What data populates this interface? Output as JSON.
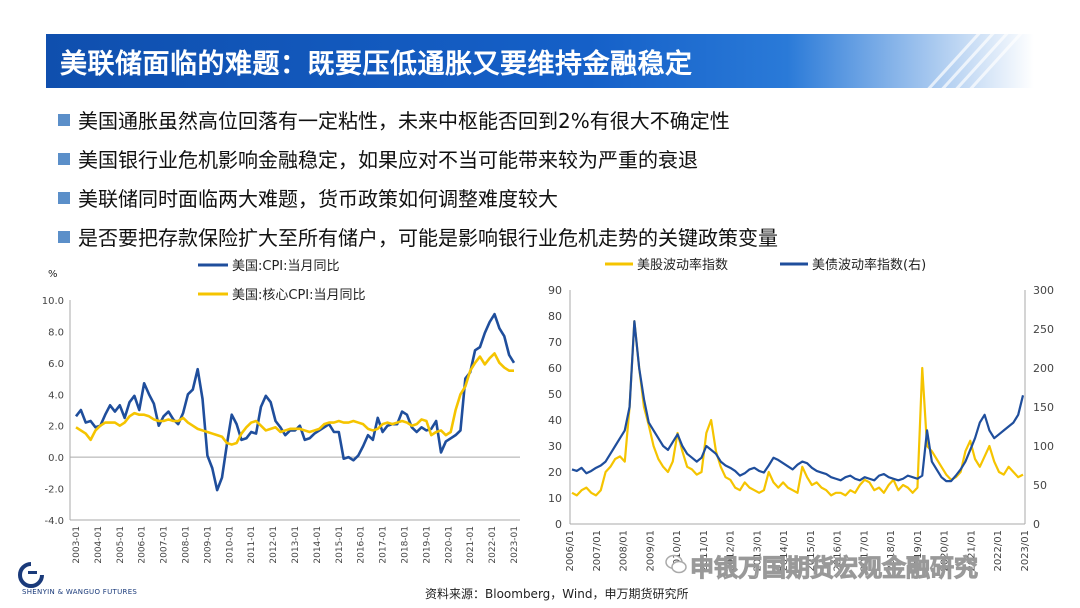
{
  "title": "美联储面临的难题：既要压低通胀又要维持金融稳定",
  "bullets": [
    "美国通胀虽然高位回落有一定粘性，未来中枢能否回到2%有很大不确定性",
    "美国银行业危机影响金融稳定，如果应对不当可能带来较为严重的衰退",
    "美联储同时面临两大难题，货币政策如何调整难度较大",
    "是否要把存款保险扩大至所有储户，可能是影响银行业危机走势的关键政策变量"
  ],
  "colors": {
    "title_bg": "#1560c8",
    "navy": "#1f4e9c",
    "gold": "#f5c400",
    "bullet": "#5b8fc9"
  },
  "chart_data": [
    {
      "type": "line",
      "unit_label": "%",
      "ylim": [
        -4.0,
        10.0
      ],
      "yticks": [
        "10.0",
        "8.0",
        "6.0",
        "4.0",
        "2.0",
        "0.0",
        "-2.0",
        "-4.0"
      ],
      "xticks": [
        "2003-01",
        "2004-01",
        "2005-01",
        "2006-01",
        "2007-01",
        "2008-01",
        "2009-01",
        "2010-01",
        "2011-01",
        "2012-01",
        "2013-01",
        "2014-01",
        "2015-01",
        "2016-01",
        "2017-01",
        "2018-01",
        "2019-01",
        "2020-01",
        "2021-01",
        "2022-01",
        "2023-01"
      ],
      "series": [
        {
          "name": "美国:CPI:当月同比",
          "color": "#1f4e9c",
          "values": [
            2.6,
            3.0,
            2.2,
            2.3,
            1.9,
            2.0,
            2.7,
            3.3,
            2.9,
            3.3,
            2.5,
            3.5,
            3.9,
            3.0,
            4.7,
            4.0,
            3.4,
            2.0,
            2.6,
            2.9,
            2.4,
            2.1,
            2.8,
            4.0,
            4.3,
            5.6,
            3.7,
            0.1,
            -0.7,
            -2.1,
            -1.3,
            0.8,
            2.7,
            2.1,
            1.1,
            1.2,
            1.6,
            1.5,
            3.2,
            3.9,
            3.5,
            2.3,
            1.9,
            1.4,
            1.7,
            1.7,
            2.0,
            1.1,
            1.2,
            1.5,
            1.7,
            1.9,
            2.1,
            1.6,
            1.6,
            -0.1,
            0.0,
            -0.2,
            0.1,
            0.7,
            1.4,
            1.1,
            2.5,
            1.6,
            2.0,
            2.1,
            2.1,
            2.9,
            2.7,
            1.9,
            1.6,
            1.9,
            1.7,
            1.8,
            2.3,
            0.3,
            1.0,
            1.2,
            1.4,
            1.7,
            5.0,
            5.4,
            6.8,
            7.0,
            7.9,
            8.6,
            9.1,
            8.2,
            7.7,
            6.5,
            6.0
          ]
        },
        {
          "name": "美国:核心CPI:当月同比",
          "color": "#f5c400",
          "values": [
            1.9,
            1.7,
            1.5,
            1.1,
            1.7,
            2.0,
            2.2,
            2.2,
            2.2,
            2.0,
            2.2,
            2.6,
            2.8,
            2.7,
            2.7,
            2.6,
            2.4,
            2.3,
            2.3,
            2.4,
            2.3,
            2.3,
            2.5,
            2.2,
            2.0,
            1.8,
            1.7,
            1.6,
            1.5,
            1.4,
            1.3,
            0.9,
            0.8,
            0.9,
            1.5,
            1.9,
            2.2,
            2.3,
            2.0,
            1.7,
            1.8,
            1.9,
            1.6,
            1.7,
            1.8,
            1.8,
            1.8,
            1.7,
            1.6,
            1.7,
            1.8,
            2.1,
            2.2,
            2.2,
            2.3,
            2.2,
            2.2,
            2.3,
            2.2,
            2.1,
            1.8,
            1.7,
            1.8,
            2.1,
            2.2,
            2.1,
            2.2,
            2.3,
            2.2,
            2.0,
            2.1,
            2.4,
            2.3,
            1.4,
            1.6,
            1.7,
            1.4,
            1.6,
            3.0,
            4.0,
            4.5,
            5.5,
            6.0,
            6.4,
            5.9,
            6.3,
            6.6,
            6.0,
            5.7,
            5.5,
            5.5
          ]
        }
      ]
    },
    {
      "type": "line",
      "ylim": [
        0,
        90
      ],
      "y2lim": [
        0,
        300
      ],
      "yticks": [
        "90",
        "80",
        "70",
        "60",
        "50",
        "40",
        "30",
        "20",
        "10",
        "0"
      ],
      "y2ticks": [
        "300",
        "250",
        "200",
        "150",
        "100",
        "50",
        "0"
      ],
      "xticks": [
        "2006/01",
        "2007/01",
        "2008/01",
        "2009/01",
        "2010/01",
        "2011/01",
        "2012/01",
        "2013/01",
        "2014/01",
        "2015/01",
        "2016/01",
        "2017/01",
        "2018/01",
        "2019/01",
        "2020/01",
        "2021/01",
        "2022/01",
        "2023/01"
      ],
      "series": [
        {
          "name": "美股波动率指数",
          "color": "#f5c400",
          "axis": "left",
          "values": [
            12,
            11,
            13,
            14,
            12,
            11,
            13,
            20,
            22,
            25,
            26,
            24,
            45,
            78,
            60,
            45,
            38,
            30,
            25,
            22,
            20,
            24,
            35,
            28,
            22,
            21,
            19,
            20,
            35,
            40,
            28,
            22,
            18,
            17,
            14,
            13,
            16,
            14,
            13,
            12,
            13,
            20,
            16,
            14,
            16,
            14,
            13,
            12,
            22,
            18,
            15,
            16,
            14,
            13,
            11,
            12,
            12,
            11,
            13,
            12,
            15,
            17,
            16,
            13,
            14,
            12,
            15,
            17,
            13,
            15,
            14,
            12,
            14,
            60,
            30,
            28,
            25,
            22,
            19,
            17,
            18,
            20,
            28,
            32,
            25,
            22,
            26,
            30,
            24,
            20,
            19,
            22,
            20,
            18,
            19
          ]
        },
        {
          "name": "美债波动率指数(右)",
          "color": "#1f4e9c",
          "axis": "right",
          "values": [
            70,
            68,
            72,
            65,
            68,
            72,
            75,
            80,
            90,
            100,
            110,
            120,
            150,
            260,
            200,
            160,
            130,
            120,
            110,
            100,
            95,
            105,
            115,
            100,
            90,
            85,
            80,
            85,
            100,
            95,
            90,
            80,
            75,
            72,
            68,
            62,
            65,
            70,
            72,
            68,
            66,
            75,
            85,
            82,
            78,
            74,
            70,
            76,
            80,
            78,
            72,
            68,
            66,
            64,
            60,
            58,
            56,
            60,
            62,
            58,
            56,
            60,
            58,
            56,
            62,
            64,
            60,
            58,
            56,
            58,
            62,
            60,
            58,
            62,
            120,
            80,
            70,
            60,
            55,
            55,
            62,
            70,
            80,
            95,
            110,
            130,
            140,
            120,
            110,
            115,
            120,
            125,
            130,
            140,
            165
          ]
        }
      ]
    }
  ],
  "footer": {
    "logo_text": "SHENYIN & WANGUO FUTURES",
    "source": "资料来源：Bloomberg，Wind，申万期货研究所",
    "watermark": "申银万国期货宏观金融研究"
  }
}
